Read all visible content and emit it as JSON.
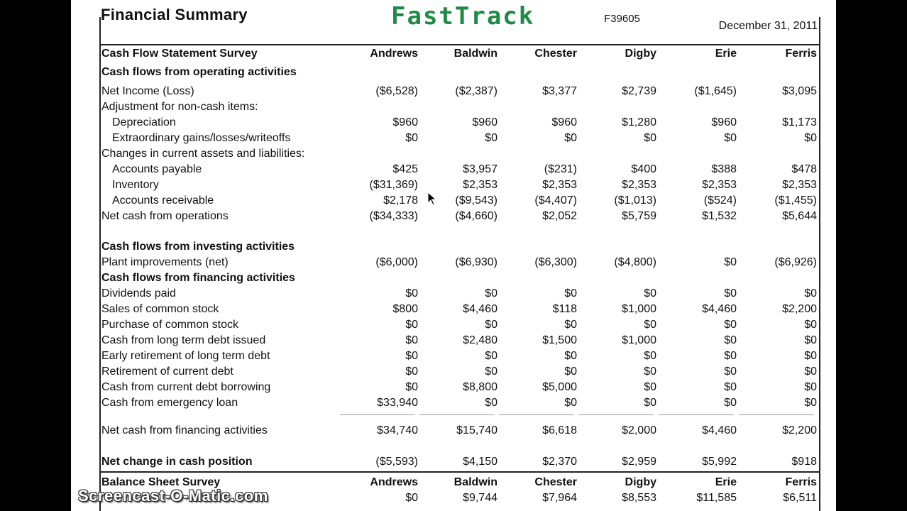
{
  "header": {
    "title": "Financial Summary",
    "logo": "FastTrack",
    "code": "F39605",
    "date": "December 31, 2011"
  },
  "columns": [
    "Andrews",
    "Baldwin",
    "Chester",
    "Digby",
    "Erie",
    "Ferris"
  ],
  "rows": [
    {
      "label": "Cash Flow Statement Survey",
      "bold": true,
      "values": [
        "Andrews",
        "Baldwin",
        "Chester",
        "Digby",
        "Erie",
        "Ferris"
      ]
    },
    {
      "label": "Cash flows from operating activities",
      "bold": true,
      "values": []
    },
    {
      "label": "Net Income (Loss)",
      "values": [
        "($6,528)",
        "($2,387)",
        "$3,377",
        "$2,739",
        "($1,645)",
        "$3,095"
      ]
    },
    {
      "label": "Adjustment for non-cash items:",
      "values": []
    },
    {
      "label": "Depreciation",
      "indent": true,
      "values": [
        "$960",
        "$960",
        "$960",
        "$1,280",
        "$960",
        "$1,173"
      ]
    },
    {
      "label": "Extraordinary gains/losses/writeoffs",
      "indent": true,
      "values": [
        "$0",
        "$0",
        "$0",
        "$0",
        "$0",
        "$0"
      ]
    },
    {
      "label": "Changes in current assets and liabilities:",
      "values": []
    },
    {
      "label": "Accounts payable",
      "indent": true,
      "values": [
        "$425",
        "$3,957",
        "($231)",
        "$400",
        "$388",
        "$478"
      ]
    },
    {
      "label": "Inventory",
      "indent": true,
      "values": [
        "($31,369)",
        "$2,353",
        "$2,353",
        "$2,353",
        "$2,353",
        "$2,353"
      ]
    },
    {
      "label": "Accounts receivable",
      "indent": true,
      "values": [
        "$2,178",
        "($9,543)",
        "($4,407)",
        "($1,013)",
        "($524)",
        "($1,455)"
      ]
    },
    {
      "label": "Net cash from operations",
      "values": [
        "($34,333)",
        "($4,660)",
        "$2,052",
        "$5,759",
        "$1,532",
        "$5,644"
      ]
    },
    {
      "label": "Cash flows from investing activities",
      "bold": true,
      "values": []
    },
    {
      "label": "Plant improvements (net)",
      "values": [
        "($6,000)",
        "($6,930)",
        "($6,300)",
        "($4,800)",
        "$0",
        "($6,926)"
      ]
    },
    {
      "label": "Cash flows from financing activities",
      "bold": true,
      "values": []
    },
    {
      "label": "Dividends paid",
      "values": [
        "$0",
        "$0",
        "$0",
        "$0",
        "$0",
        "$0"
      ]
    },
    {
      "label": "Sales of common stock",
      "values": [
        "$800",
        "$4,460",
        "$118",
        "$1,000",
        "$4,460",
        "$2,200"
      ]
    },
    {
      "label": "Purchase of common stock",
      "values": [
        "$0",
        "$0",
        "$0",
        "$0",
        "$0",
        "$0"
      ]
    },
    {
      "label": "Cash from long term debt issued",
      "values": [
        "$0",
        "$2,480",
        "$1,500",
        "$1,000",
        "$0",
        "$0"
      ]
    },
    {
      "label": "Early retirement of long term debt",
      "values": [
        "$0",
        "$0",
        "$0",
        "$0",
        "$0",
        "$0"
      ]
    },
    {
      "label": "Retirement of current debt",
      "values": [
        "$0",
        "$0",
        "$0",
        "$0",
        "$0",
        "$0"
      ]
    },
    {
      "label": "Cash from current debt borrowing",
      "values": [
        "$0",
        "$8,800",
        "$5,000",
        "$0",
        "$0",
        "$0"
      ]
    },
    {
      "label": "Cash from emergency loan",
      "values": [
        "$33,940",
        "$0",
        "$0",
        "$0",
        "$0",
        "$0"
      ]
    },
    {
      "label": "Net cash from financing activities",
      "values": [
        "$34,740",
        "$15,740",
        "$6,618",
        "$2,000",
        "$4,460",
        "$2,200"
      ]
    },
    {
      "label": "Net change in cash position",
      "bold": true,
      "values": [
        "($5,593)",
        "$4,150",
        "$2,370",
        "$2,959",
        "$5,992",
        "$918"
      ]
    },
    {
      "label": "Balance Sheet Survey",
      "bold": true,
      "values": [
        "Andrews",
        "Baldwin",
        "Chester",
        "Digby",
        "Erie",
        "Ferris"
      ]
    },
    {
      "label": "",
      "values": [
        "$0",
        "$9,744",
        "$7,964",
        "$8,553",
        "$11,585",
        "$6,511"
      ]
    }
  ],
  "watermark": "Screencast-O-Matic.com"
}
